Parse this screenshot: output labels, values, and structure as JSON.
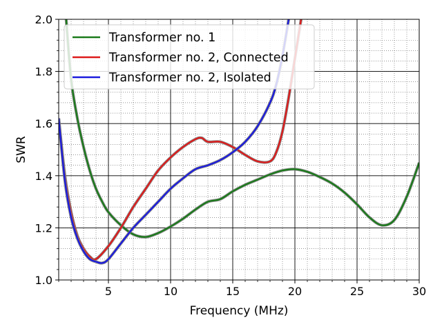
{
  "chart_data": {
    "type": "line",
    "title": "",
    "xlabel": "Frequency (MHz)",
    "ylabel": "SWR",
    "xlim": [
      1,
      30
    ],
    "ylim": [
      1.0,
      2.0
    ],
    "x_ticks": [
      5,
      10,
      15,
      20,
      25,
      30
    ],
    "x_tick_labels": [
      "5",
      "10",
      "15",
      "20",
      "25",
      "30"
    ],
    "y_ticks": [
      1.0,
      1.2,
      1.4,
      1.6,
      1.8,
      2.0
    ],
    "y_tick_labels": [
      "1.0",
      "1.2",
      "1.4",
      "1.6",
      "1.8",
      "2.0"
    ],
    "grid": true,
    "minor_grid": true,
    "legend_position": "top-left",
    "series": [
      {
        "name": "Transformer no. 1",
        "color": "#1a7a1a",
        "x": [
          1.6,
          2,
          2.5,
          3,
          3.5,
          4,
          4.5,
          5,
          6,
          7,
          8,
          9,
          10,
          11,
          12,
          13,
          14,
          15,
          16,
          17,
          18,
          19,
          20,
          21,
          22,
          23,
          24,
          25,
          26,
          27,
          28,
          29,
          30
        ],
        "y": [
          2.0,
          1.77,
          1.62,
          1.51,
          1.42,
          1.35,
          1.3,
          1.26,
          1.21,
          1.175,
          1.165,
          1.18,
          1.205,
          1.235,
          1.27,
          1.3,
          1.31,
          1.34,
          1.365,
          1.385,
          1.405,
          1.42,
          1.425,
          1.415,
          1.395,
          1.37,
          1.335,
          1.29,
          1.24,
          1.21,
          1.23,
          1.32,
          1.45
        ]
      },
      {
        "name": "Transformer no. 2, Connected",
        "color": "#dd1a1a",
        "x": [
          1,
          1.5,
          2,
          2.5,
          3,
          3.5,
          4,
          5,
          6,
          7,
          8,
          9,
          10,
          11,
          12,
          12.5,
          13,
          14,
          15,
          16,
          17,
          18,
          18.5,
          19,
          19.5,
          20,
          20.5
        ],
        "y": [
          1.62,
          1.4,
          1.26,
          1.17,
          1.12,
          1.09,
          1.08,
          1.13,
          1.2,
          1.28,
          1.35,
          1.42,
          1.47,
          1.51,
          1.54,
          1.545,
          1.53,
          1.53,
          1.51,
          1.48,
          1.455,
          1.455,
          1.49,
          1.57,
          1.7,
          1.85,
          2.0
        ]
      },
      {
        "name": "Transformer no. 2, Isolated",
        "color": "#1a1add",
        "x": [
          1,
          1.5,
          2,
          2.5,
          3,
          3.5,
          4,
          4.5,
          5,
          6,
          7,
          8,
          9,
          10,
          11,
          12,
          13,
          14,
          15,
          16,
          17,
          18,
          18.5,
          19,
          19.5
        ],
        "y": [
          1.62,
          1.38,
          1.24,
          1.16,
          1.11,
          1.08,
          1.07,
          1.065,
          1.08,
          1.14,
          1.2,
          1.25,
          1.3,
          1.35,
          1.39,
          1.425,
          1.44,
          1.46,
          1.49,
          1.53,
          1.59,
          1.68,
          1.75,
          1.86,
          2.0
        ]
      }
    ]
  }
}
